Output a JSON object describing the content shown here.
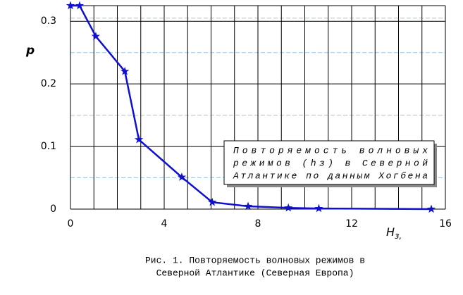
{
  "chart_data": {
    "type": "line",
    "x": [
      0,
      0.39,
      1.08,
      2.32,
      2.92,
      4.75,
      6.05,
      7.58,
      9.3,
      10.6,
      15.4
    ],
    "series": [
      {
        "color": "#1010d0",
        "values": [
          0.325,
          0.325,
          0.276,
          0.22,
          0.111,
          0.051,
          0.011,
          0.0045,
          0.002,
          0.001,
          0.0
        ]
      }
    ],
    "xlim": [
      0,
      16
    ],
    "xticks": [
      0,
      4,
      8,
      12,
      16
    ],
    "xgrid": [
      1,
      2,
      3,
      5,
      6,
      7,
      9,
      10,
      11,
      13,
      14,
      15
    ],
    "ylim": [
      0,
      0.325
    ],
    "yticks": [
      0,
      0.1,
      0.2,
      0.3
    ],
    "ygrid_dashed": [
      0.05,
      0.15,
      0.25,
      0.305
    ],
    "ylabel": "p",
    "xlabel": "H",
    "xlabel_sub": "з,",
    "annotation": [
      "Повторяемость       волновых",
      "режимов  (hз)  в  Северной",
      "Атлантике по данным Хогбена"
    ],
    "caption": [
      "Рис. 1.  Повторяемость волновых режимов в",
      "Северной Атлантике (Северная Европа)"
    ]
  }
}
